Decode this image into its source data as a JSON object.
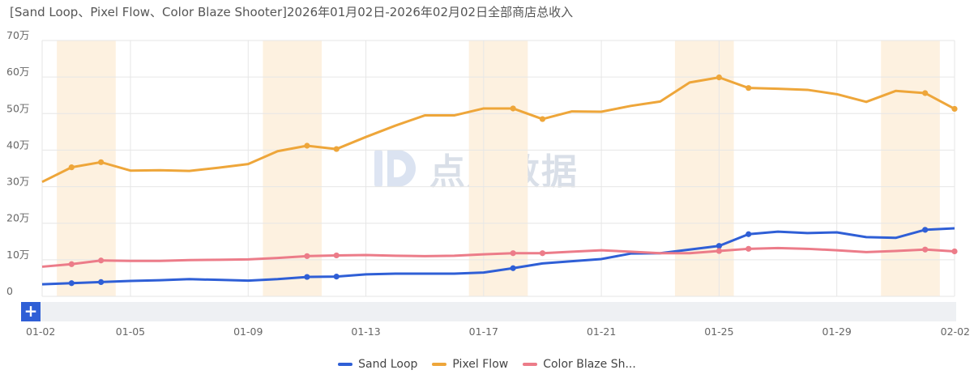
{
  "title": "[Sand Loop、Pixel Flow、Color Blaze Shooter]2026年01月02日-2026年02月02日全部商店总收入",
  "watermark": {
    "text": "点点数据",
    "icon": "diandian-logo-icon"
  },
  "zoom_button": "+",
  "colors": {
    "sand_loop": "#2f5fd6",
    "pixel_flow": "#eea63a",
    "color_blaze": "#ec7c89",
    "highlight": "#fdf1e0",
    "grid": "#e6e6e6"
  },
  "chart_data": {
    "type": "line",
    "x": [
      "01-02",
      "01-03",
      "01-04",
      "01-05",
      "01-06",
      "01-07",
      "01-08",
      "01-09",
      "01-10",
      "01-11",
      "01-12",
      "01-13",
      "01-14",
      "01-15",
      "01-16",
      "01-17",
      "01-18",
      "01-19",
      "01-20",
      "01-21",
      "01-22",
      "01-23",
      "01-24",
      "01-25",
      "01-26",
      "01-27",
      "01-28",
      "01-29",
      "01-30",
      "01-31",
      "02-01",
      "02-02"
    ],
    "xticks": [
      "01-02",
      "01-05",
      "01-09",
      "01-13",
      "01-17",
      "01-21",
      "01-25",
      "01-29",
      "02-02"
    ],
    "yticks": [
      "0",
      "10万",
      "20万",
      "30万",
      "40万",
      "50万",
      "60万",
      "70万"
    ],
    "ylim": [
      0,
      700000
    ],
    "highlight_ranges": [
      [
        "01-03",
        "01-04"
      ],
      [
        "01-10",
        "01-11"
      ],
      [
        "01-17",
        "01-18"
      ],
      [
        "01-24",
        "01-25"
      ],
      [
        "01-31",
        "02-01"
      ]
    ],
    "series": [
      {
        "name": "Sand Loop",
        "color": "#2f5fd6",
        "values": [
          33000,
          36000,
          39000,
          42000,
          44000,
          47000,
          45000,
          43000,
          47000,
          53000,
          54000,
          60000,
          62000,
          62000,
          62000,
          65000,
          77000,
          90000,
          96000,
          102000,
          117000,
          118000,
          128000,
          138000,
          170000,
          177000,
          173000,
          175000,
          162000,
          160000,
          182000,
          186000
        ],
        "markers": [
          1,
          2,
          9,
          10,
          16,
          23,
          24,
          30
        ]
      },
      {
        "name": "Pixel Flow",
        "color": "#eea63a",
        "values": [
          313000,
          353000,
          367000,
          344000,
          345000,
          343000,
          352000,
          362000,
          397000,
          412000,
          403000,
          436000,
          467000,
          495000,
          495000,
          514000,
          514000,
          485000,
          506000,
          505000,
          521000,
          533000,
          585000,
          599000,
          570000,
          568000,
          565000,
          553000,
          532000,
          562000,
          556000,
          513000
        ],
        "markers": [
          1,
          2,
          9,
          10,
          16,
          17,
          23,
          24,
          30,
          31
        ]
      },
      {
        "name": "Color Blaze Sh...",
        "color": "#ec7c89",
        "values": [
          81000,
          88000,
          98000,
          97000,
          97000,
          99000,
          100000,
          101000,
          105000,
          110000,
          112000,
          113000,
          111000,
          110000,
          111000,
          115000,
          118000,
          118000,
          122000,
          126000,
          122000,
          118000,
          118000,
          124000,
          130000,
          132000,
          130000,
          126000,
          121000,
          124000,
          128000,
          123000
        ],
        "markers": [
          1,
          2,
          9,
          10,
          16,
          17,
          23,
          24,
          30,
          31
        ]
      }
    ]
  }
}
